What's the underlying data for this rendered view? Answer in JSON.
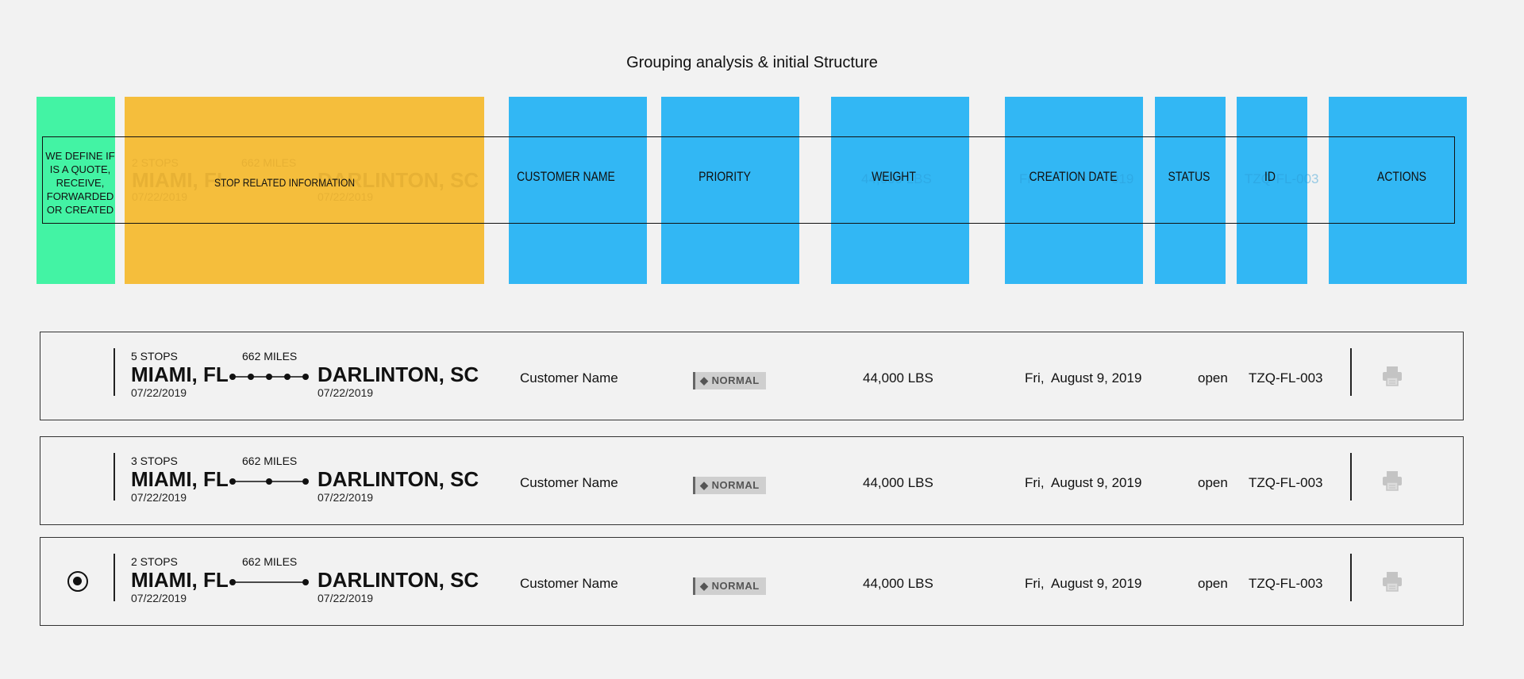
{
  "title": "Grouping analysis & initial Structure",
  "analysis": {
    "green_label": "WE DEFINE IF IS A QUOTE, RECEIVE, FORWARDED OR CREATED",
    "stop_label": "STOP RELATED INFORMATION",
    "columns": [
      {
        "key": "customer",
        "label": "CUSTOMER NAME"
      },
      {
        "key": "priority",
        "label": "PRIORITY"
      },
      {
        "key": "weight",
        "label": "WEIGHT"
      },
      {
        "key": "creation",
        "label": "CREATION DATE"
      },
      {
        "key": "status",
        "label": "STATUS"
      },
      {
        "key": "id",
        "label": "ID"
      },
      {
        "key": "actions",
        "label": "ACTIONS"
      }
    ],
    "ghost": {
      "stops": "2 STOPS",
      "miles": "662 MILES",
      "origin": "MIAMI, FL",
      "destination": "DARLINTON, SC",
      "origin_date": "07/22/2019",
      "dest_date": "07/22/2019",
      "weight": "44,000 LBS",
      "creation_prefix": "Fr",
      "creation_suffix": "019",
      "id": "TZQ-FL-003"
    }
  },
  "rows": [
    {
      "stops": "5 STOPS",
      "stop_count": 5,
      "miles": "662 MILES",
      "origin": "MIAMI, FL",
      "origin_date": "07/22/2019",
      "destination": "DARLINTON, SC",
      "dest_date": "07/22/2019",
      "customer": "Customer Name",
      "priority": "NORMAL",
      "weight": "44,000 LBS",
      "creation_date": "Fri,  August 9, 2019",
      "status": "open",
      "id": "TZQ-FL-003",
      "selected": false
    },
    {
      "stops": "3 STOPS",
      "stop_count": 3,
      "miles": "662 MILES",
      "origin": "MIAMI, FL",
      "origin_date": "07/22/2019",
      "destination": "DARLINTON, SC",
      "dest_date": "07/22/2019",
      "customer": "Customer Name",
      "priority": "NORMAL",
      "weight": "44,000 LBS",
      "creation_date": "Fri,  August 9, 2019",
      "status": "open",
      "id": "TZQ-FL-003",
      "selected": false
    },
    {
      "stops": "2 STOPS",
      "stop_count": 2,
      "miles": "662 MILES",
      "origin": "MIAMI, FL",
      "origin_date": "07/22/2019",
      "destination": "DARLINTON, SC",
      "dest_date": "07/22/2019",
      "customer": "Customer Name",
      "priority": "NORMAL",
      "weight": "44,000 LBS",
      "creation_date": "Fri,  August 9, 2019",
      "status": "open",
      "id": "TZQ-FL-003",
      "selected": true
    }
  ],
  "colors": {
    "green": "#43f3a4",
    "yellow": "#f5be3c",
    "blue": "#32b7f4",
    "badge": "#cfcfcf"
  },
  "icons": {
    "print": "printer-icon",
    "priority": "diamond-icon",
    "selected": "radio-selected-icon"
  }
}
